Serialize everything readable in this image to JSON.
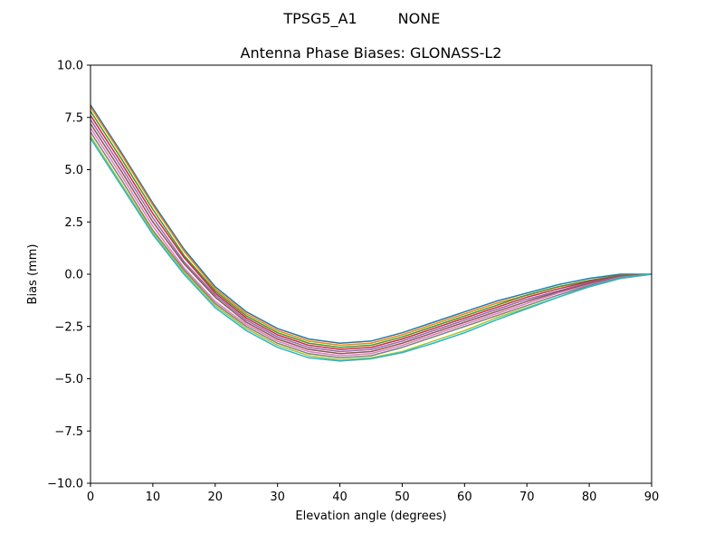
{
  "figure": {
    "suptitle_left": "TPSG5_A1",
    "suptitle_right": "NONE"
  },
  "chart_data": {
    "type": "line",
    "title": "Antenna Phase Biases: GLONASS-L2",
    "xlabel": "Elevation angle (degrees)",
    "ylabel": "Bias (mm)",
    "xlim": [
      0,
      90
    ],
    "ylim": [
      -10,
      10
    ],
    "xticks": [
      0,
      10,
      20,
      30,
      40,
      50,
      60,
      70,
      80,
      90
    ],
    "xtick_labels": [
      "0",
      "10",
      "20",
      "30",
      "40",
      "50",
      "60",
      "70",
      "80",
      "90"
    ],
    "yticks": [
      10,
      7.5,
      5,
      2.5,
      0,
      -2.5,
      -5,
      -7.5,
      -10
    ],
    "ytick_labels": [
      "10.0",
      "7.5",
      "5.0",
      "2.5",
      "0.0",
      "−2.5",
      "−5.0",
      "−7.5",
      "−10.0"
    ],
    "grid": false,
    "legend": "none",
    "x": [
      0,
      5,
      10,
      15,
      20,
      25,
      30,
      35,
      40,
      45,
      50,
      55,
      60,
      65,
      70,
      75,
      80,
      85,
      90
    ],
    "series_colors": [
      "#1f77b4",
      "#ff7f0e",
      "#2ca02c",
      "#d62728",
      "#9467bd",
      "#8c564b",
      "#e377c2",
      "#7f7f7f",
      "#bcbd22",
      "#17becf"
    ],
    "series": [
      {
        "values": [
          8.1,
          5.8,
          3.4,
          1.2,
          -0.6,
          -1.8,
          -2.6,
          -3.1,
          -3.3,
          -3.2,
          -2.8,
          -2.3,
          -1.8,
          -1.3,
          -0.9,
          -0.5,
          -0.2,
          0.0,
          0.0
        ]
      },
      {
        "values": [
          8.0,
          5.7,
          3.3,
          1.1,
          -0.7,
          -1.9,
          -2.7,
          -3.2,
          -3.4,
          -3.3,
          -2.9,
          -2.4,
          -1.9,
          -1.4,
          -1.0,
          -0.6,
          -0.3,
          -0.05,
          0.0
        ]
      },
      {
        "values": [
          7.8,
          5.5,
          3.1,
          0.9,
          -0.8,
          -2.0,
          -2.8,
          -3.3,
          -3.5,
          -3.4,
          -3.0,
          -2.5,
          -2.0,
          -1.5,
          -1.0,
          -0.6,
          -0.3,
          -0.05,
          0.0
        ]
      },
      {
        "values": [
          7.6,
          5.3,
          2.9,
          0.8,
          -0.9,
          -2.1,
          -2.9,
          -3.4,
          -3.6,
          -3.5,
          -3.1,
          -2.6,
          -2.1,
          -1.6,
          -1.1,
          -0.7,
          -0.35,
          -0.08,
          0.0
        ]
      },
      {
        "values": [
          7.4,
          5.1,
          2.7,
          0.6,
          -1.0,
          -2.2,
          -3.0,
          -3.5,
          -3.7,
          -3.6,
          -3.2,
          -2.7,
          -2.2,
          -1.7,
          -1.2,
          -0.8,
          -0.4,
          -0.1,
          0.0
        ]
      },
      {
        "values": [
          7.2,
          4.9,
          2.5,
          0.5,
          -1.1,
          -2.3,
          -3.1,
          -3.6,
          -3.8,
          -3.7,
          -3.3,
          -2.8,
          -2.3,
          -1.8,
          -1.3,
          -0.85,
          -0.45,
          -0.12,
          0.0
        ]
      },
      {
        "values": [
          7.0,
          4.7,
          2.3,
          0.3,
          -1.3,
          -2.4,
          -3.2,
          -3.7,
          -3.9,
          -3.8,
          -3.4,
          -2.9,
          -2.4,
          -1.9,
          -1.4,
          -0.9,
          -0.5,
          -0.15,
          0.0
        ]
      },
      {
        "values": [
          6.8,
          4.5,
          2.1,
          0.2,
          -1.4,
          -2.5,
          -3.3,
          -3.8,
          -4.0,
          -3.9,
          -3.5,
          -3.0,
          -2.5,
          -2.0,
          -1.5,
          -1.0,
          -0.55,
          -0.18,
          0.0
        ]
      },
      {
        "values": [
          6.6,
          4.3,
          2.0,
          0.1,
          -1.5,
          -2.6,
          -3.4,
          -3.9,
          -4.1,
          -4.0,
          -3.7,
          -3.2,
          -2.7,
          -2.1,
          -1.6,
          -1.1,
          -0.6,
          -0.2,
          0.0
        ]
      },
      {
        "values": [
          6.5,
          4.2,
          1.9,
          0.0,
          -1.6,
          -2.7,
          -3.5,
          -4.0,
          -4.15,
          -4.05,
          -3.75,
          -3.3,
          -2.8,
          -2.2,
          -1.65,
          -1.1,
          -0.6,
          -0.2,
          0.0
        ]
      }
    ]
  }
}
